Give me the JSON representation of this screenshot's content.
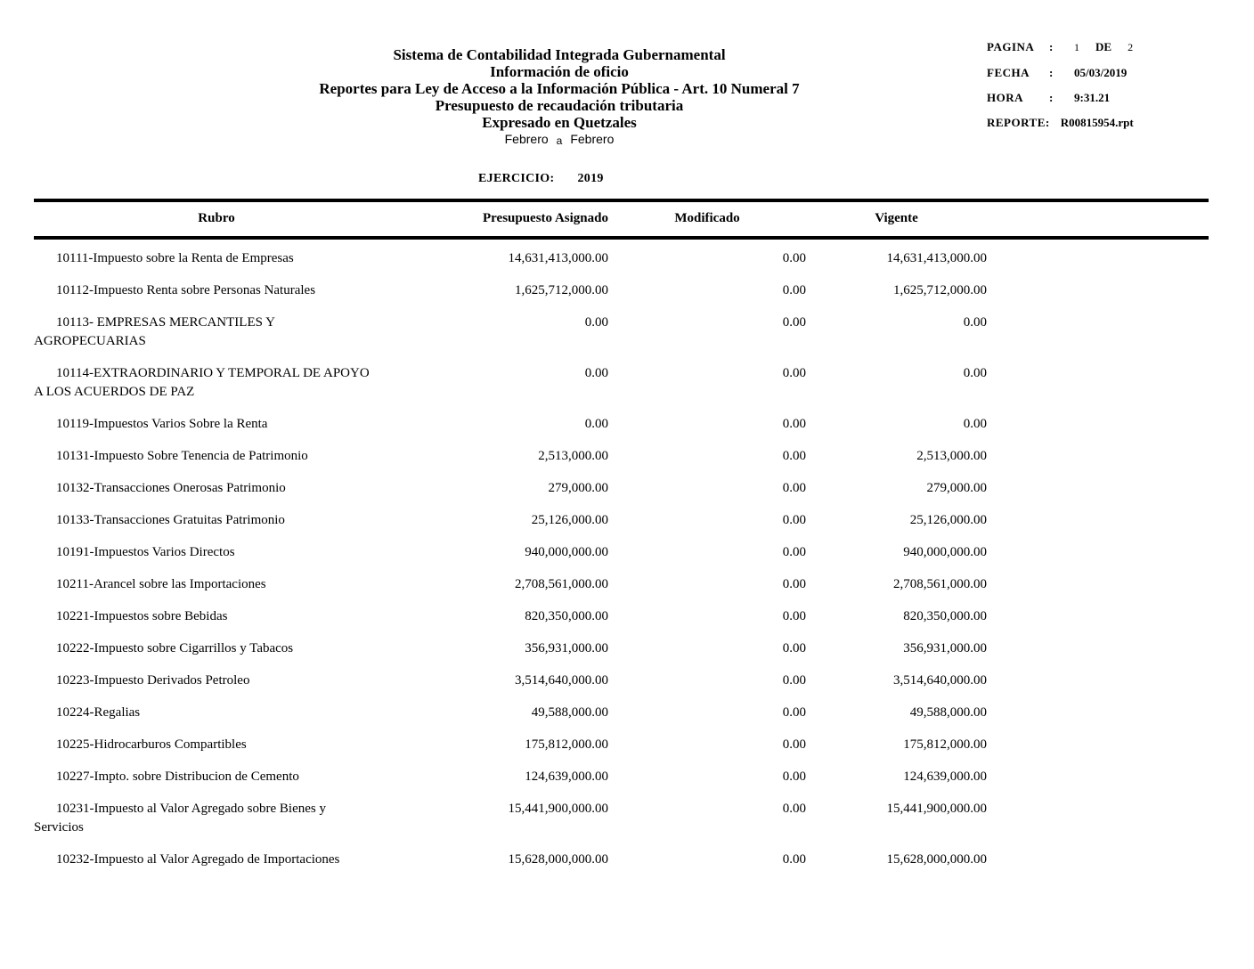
{
  "report": {
    "title_lines": [
      "Sistema de Contabilidad Integrada Gubernamental",
      "Información de oficio",
      "Reportes para Ley de Acceso a la Información Pública - Art. 10 Numeral 7",
      "Presupuesto de recaudación tributaria",
      "Expresado en Quetzales"
    ],
    "period": {
      "from": "Febrero",
      "separator": "a",
      "to": "Febrero"
    },
    "meta": {
      "colon": ":",
      "pagina_label": "PAGINA",
      "page_current": "1",
      "page_de": "DE",
      "page_total": "2",
      "fecha_label": "FECHA",
      "fecha_value": "05/03/2019",
      "hora_label": "HORA",
      "hora_value": "9:31.21",
      "reporte_label": "REPORTE:",
      "reporte_value": "R00815954.rpt"
    },
    "ejercicio": {
      "label": "EJERCICIO:",
      "value": "2019"
    }
  },
  "table": {
    "columns": [
      "Rubro",
      "Presupuesto Asignado",
      "Modificado",
      "Vigente"
    ],
    "rows": [
      {
        "label": "10111-Impuesto sobre la Renta de Empresas",
        "label2": "",
        "asignado": "14,631,413,000.00",
        "modificado": "0.00",
        "vigente": "14,631,413,000.00"
      },
      {
        "label": "10112-Impuesto Renta sobre Personas Naturales",
        "label2": "",
        "asignado": "1,625,712,000.00",
        "modificado": "0.00",
        "vigente": "1,625,712,000.00"
      },
      {
        "label": "10113- EMPRESAS MERCANTILES Y",
        "label2": "AGROPECUARIAS",
        "asignado": "0.00",
        "modificado": "0.00",
        "vigente": "0.00"
      },
      {
        "label": "10114-EXTRAORDINARIO Y TEMPORAL DE APOYO",
        "label2": "A LOS ACUERDOS DE PAZ",
        "asignado": "0.00",
        "modificado": "0.00",
        "vigente": "0.00"
      },
      {
        "label": "10119-Impuestos Varios Sobre la Renta",
        "label2": "",
        "asignado": "0.00",
        "modificado": "0.00",
        "vigente": "0.00"
      },
      {
        "label": "10131-Impuesto Sobre Tenencia de Patrimonio",
        "label2": "",
        "asignado": "2,513,000.00",
        "modificado": "0.00",
        "vigente": "2,513,000.00"
      },
      {
        "label": "10132-Transacciones Onerosas Patrimonio",
        "label2": "",
        "asignado": "279,000.00",
        "modificado": "0.00",
        "vigente": "279,000.00"
      },
      {
        "label": "10133-Transacciones Gratuitas Patrimonio",
        "label2": "",
        "asignado": "25,126,000.00",
        "modificado": "0.00",
        "vigente": "25,126,000.00"
      },
      {
        "label": "10191-Impuestos Varios Directos",
        "label2": "",
        "asignado": "940,000,000.00",
        "modificado": "0.00",
        "vigente": "940,000,000.00"
      },
      {
        "label": "10211-Arancel sobre las Importaciones",
        "label2": "",
        "asignado": "2,708,561,000.00",
        "modificado": "0.00",
        "vigente": "2,708,561,000.00"
      },
      {
        "label": "10221-Impuestos sobre Bebidas",
        "label2": "",
        "asignado": "820,350,000.00",
        "modificado": "0.00",
        "vigente": "820,350,000.00"
      },
      {
        "label": "10222-Impuesto sobre Cigarrillos y Tabacos",
        "label2": "",
        "asignado": "356,931,000.00",
        "modificado": "0.00",
        "vigente": "356,931,000.00"
      },
      {
        "label": "10223-Impuesto Derivados Petroleo",
        "label2": "",
        "asignado": "3,514,640,000.00",
        "modificado": "0.00",
        "vigente": "3,514,640,000.00"
      },
      {
        "label": "10224-Regalias",
        "label2": "",
        "asignado": "49,588,000.00",
        "modificado": "0.00",
        "vigente": "49,588,000.00"
      },
      {
        "label": "10225-Hidrocarburos Compartibles",
        "label2": "",
        "asignado": "175,812,000.00",
        "modificado": "0.00",
        "vigente": "175,812,000.00"
      },
      {
        "label": "10227-Impto. sobre Distribucion de Cemento",
        "label2": "",
        "asignado": "124,639,000.00",
        "modificado": "0.00",
        "vigente": "124,639,000.00"
      },
      {
        "label": "10231-Impuesto al Valor Agregado sobre Bienes y",
        "label2": "Servicios",
        "asignado": "15,441,900,000.00",
        "modificado": "0.00",
        "vigente": "15,441,900,000.00"
      },
      {
        "label": "10232-Impuesto al Valor Agregado de Importaciones",
        "label2": "",
        "asignado": "15,628,000,000.00",
        "modificado": "0.00",
        "vigente": "15,628,000,000.00"
      }
    ]
  }
}
